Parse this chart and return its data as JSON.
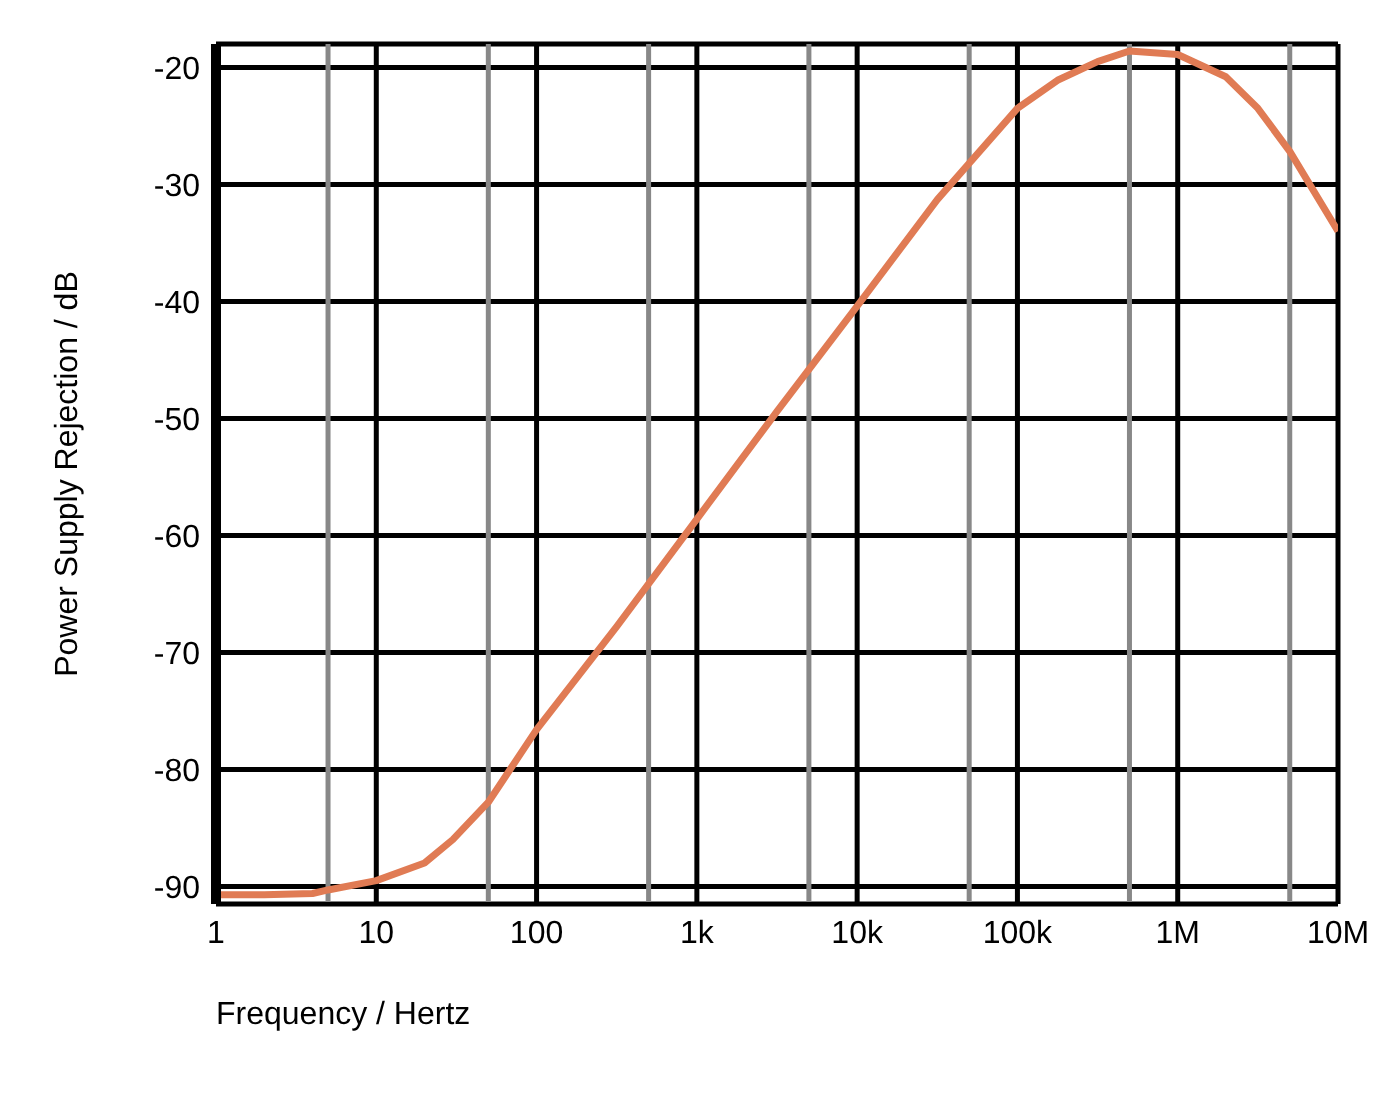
{
  "chart_data": {
    "type": "line",
    "xlabel": "Frequency / Hertz",
    "ylabel": "Power Supply Rejection / dB",
    "log": "x",
    "grid": true,
    "marker": "none",
    "line_style": "solid",
    "x": [
      1,
      2,
      4,
      5,
      10,
      20,
      30,
      50,
      100,
      316,
      1000,
      3162,
      10000,
      31623,
      100000,
      177828,
      316228,
      500000,
      1000000,
      1995262,
      3162278,
      5011872,
      10000000
    ],
    "series": [
      {
        "color": "#e07b54",
        "values": [
          -90.7,
          -90.7,
          -90.6,
          -90.3,
          -89.5,
          -88,
          -86,
          -82.8,
          -76.6,
          -67.8,
          -58.6,
          -49.4,
          -40.4,
          -31.3,
          -23.5,
          -21.1,
          -19.5,
          -18.6,
          -18.9,
          -20.8,
          -23.5,
          -27.2,
          -34
        ]
      }
    ],
    "xlim": [
      1,
      10000000
    ],
    "ylim": [
      -91.5,
      -18
    ],
    "xticks": [
      1,
      {
        "value": 5,
        "label": null
      },
      10,
      {
        "value": 50,
        "label": null
      },
      100,
      {
        "value": 500,
        "label": null
      },
      {
        "value": 1000,
        "label": "1k"
      },
      {
        "value": 5000,
        "label": null
      },
      {
        "value": 10000,
        "label": "10k"
      },
      {
        "value": 50000,
        "label": null
      },
      {
        "value": 100000,
        "label": "100k"
      },
      {
        "value": 500000,
        "label": null
      },
      {
        "value": 1000000,
        "label": "1M"
      },
      {
        "value": 5000000,
        "label": null
      },
      {
        "value": 10000000,
        "label": "10M"
      }
    ],
    "yticks": [
      -90,
      -80,
      -70,
      -60,
      -50,
      -40,
      -30,
      -20
    ]
  }
}
